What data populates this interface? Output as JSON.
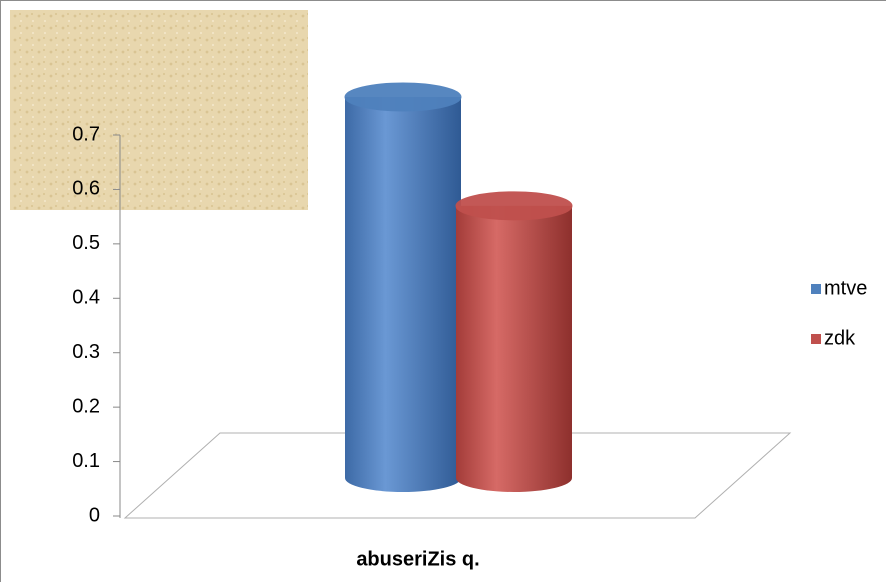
{
  "chart_data": {
    "type": "bar",
    "categories": [
      "abuseriZis q."
    ],
    "series": [
      {
        "name": "mtve",
        "color": "#4f81bd",
        "values": [
          0.7
        ]
      },
      {
        "name": "zdk",
        "color": "#c0504d",
        "values": [
          0.5
        ]
      }
    ],
    "ylim": [
      0,
      0.7
    ],
    "yticks": [
      0,
      0.1,
      0.2,
      0.3,
      0.4,
      0.5,
      0.6,
      0.7
    ],
    "legend": "right"
  }
}
